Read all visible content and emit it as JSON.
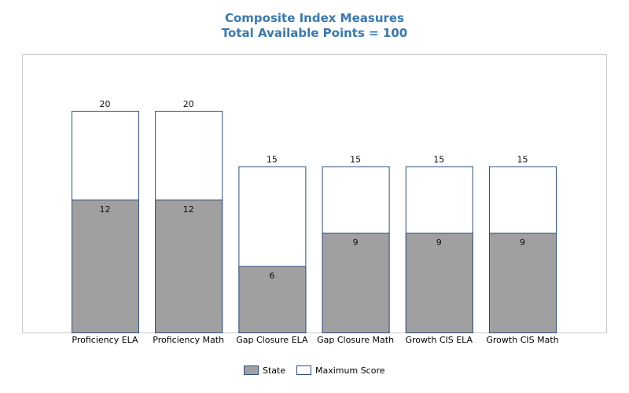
{
  "chart_data": {
    "type": "bar",
    "title": "Composite Index Measures",
    "subtitle": "Total Available Points = 100",
    "categories": [
      "Proficiency ELA",
      "Proficiency Math",
      "Gap Closure ELA",
      "Gap Closure Math",
      "Growth CIS ELA",
      "Growth CIS Math"
    ],
    "series": [
      {
        "name": "State",
        "values": [
          12,
          12,
          6,
          9,
          9,
          9
        ],
        "color": "#a0a0a0"
      },
      {
        "name": "Maximum Score",
        "values": [
          20,
          20,
          15,
          15,
          15,
          15
        ],
        "color": "#ffffff"
      }
    ],
    "ylim": [
      0,
      25
    ],
    "grid": false,
    "legend": "bottom-center",
    "border_color": "#2f4f7f"
  }
}
